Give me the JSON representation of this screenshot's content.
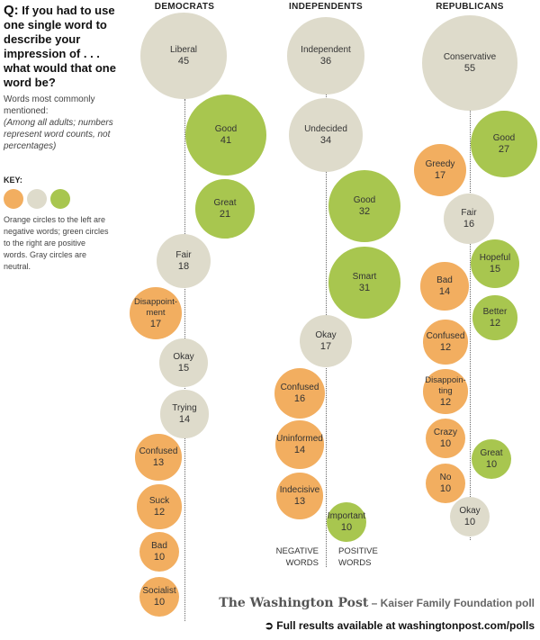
{
  "question_prefix": "Q:",
  "question": "If you had to use one single word to describe your impression of . . . what would that one word be?",
  "subtitle": "Words most commonly mentioned:",
  "note": "(Among all adults; numbers represent word counts, not percentages)",
  "key_label": "KEY:",
  "key_text": "Orange circles to the left are negative words; green circles to the right are positive words. Gray circles are neutral.",
  "colors": {
    "negative": "#f2ae60",
    "neutral": "#dedbcb",
    "positive": "#a8c64f"
  },
  "negative_words_label": "NEGATIVE WORDS",
  "positive_words_label": "POSITIVE WORDS",
  "source_logo": "The Washington Post",
  "source_text": "– Kaiser Family Foundation poll",
  "full_results": "Full results available at washingtonpost.com/polls",
  "chart_data": {
    "type": "bubble",
    "title": "If you had to use one single word to describe your impression of . . . what would that one word be?",
    "groups": [
      {
        "name": "DEMOCRATS",
        "words": [
          {
            "word": "Liberal",
            "count": 45,
            "sentiment": "neutral"
          },
          {
            "word": "Good",
            "count": 41,
            "sentiment": "positive"
          },
          {
            "word": "Great",
            "count": 21,
            "sentiment": "positive"
          },
          {
            "word": "Fair",
            "count": 18,
            "sentiment": "neutral"
          },
          {
            "word": "Disappoint-ment",
            "count": 17,
            "sentiment": "negative"
          },
          {
            "word": "Okay",
            "count": 15,
            "sentiment": "neutral"
          },
          {
            "word": "Trying",
            "count": 14,
            "sentiment": "neutral"
          },
          {
            "word": "Confused",
            "count": 13,
            "sentiment": "negative"
          },
          {
            "word": "Suck",
            "count": 12,
            "sentiment": "negative"
          },
          {
            "word": "Bad",
            "count": 10,
            "sentiment": "negative"
          },
          {
            "word": "Socialist",
            "count": 10,
            "sentiment": "negative"
          }
        ]
      },
      {
        "name": "INDEPENDENTS",
        "words": [
          {
            "word": "Independent",
            "count": 36,
            "sentiment": "neutral"
          },
          {
            "word": "Undecided",
            "count": 34,
            "sentiment": "neutral"
          },
          {
            "word": "Good",
            "count": 32,
            "sentiment": "positive"
          },
          {
            "word": "Smart",
            "count": 31,
            "sentiment": "positive"
          },
          {
            "word": "Okay",
            "count": 17,
            "sentiment": "neutral"
          },
          {
            "word": "Confused",
            "count": 16,
            "sentiment": "negative"
          },
          {
            "word": "Uninformed",
            "count": 14,
            "sentiment": "negative"
          },
          {
            "word": "Indecisive",
            "count": 13,
            "sentiment": "negative"
          },
          {
            "word": "Important",
            "count": 10,
            "sentiment": "positive"
          }
        ]
      },
      {
        "name": "REPUBLICANS",
        "words": [
          {
            "word": "Conservative",
            "count": 55,
            "sentiment": "neutral"
          },
          {
            "word": "Good",
            "count": 27,
            "sentiment": "positive"
          },
          {
            "word": "Greedy",
            "count": 17,
            "sentiment": "negative"
          },
          {
            "word": "Fair",
            "count": 16,
            "sentiment": "neutral"
          },
          {
            "word": "Hopeful",
            "count": 15,
            "sentiment": "positive"
          },
          {
            "word": "Bad",
            "count": 14,
            "sentiment": "negative"
          },
          {
            "word": "Better",
            "count": 12,
            "sentiment": "positive"
          },
          {
            "word": "Confused",
            "count": 12,
            "sentiment": "negative"
          },
          {
            "word": "Disappoin-ting",
            "count": 12,
            "sentiment": "negative"
          },
          {
            "word": "Crazy",
            "count": 10,
            "sentiment": "negative"
          },
          {
            "word": "Great",
            "count": 10,
            "sentiment": "positive"
          },
          {
            "word": "No",
            "count": 10,
            "sentiment": "negative"
          },
          {
            "word": "Okay",
            "count": 10,
            "sentiment": "neutral"
          }
        ]
      }
    ]
  }
}
